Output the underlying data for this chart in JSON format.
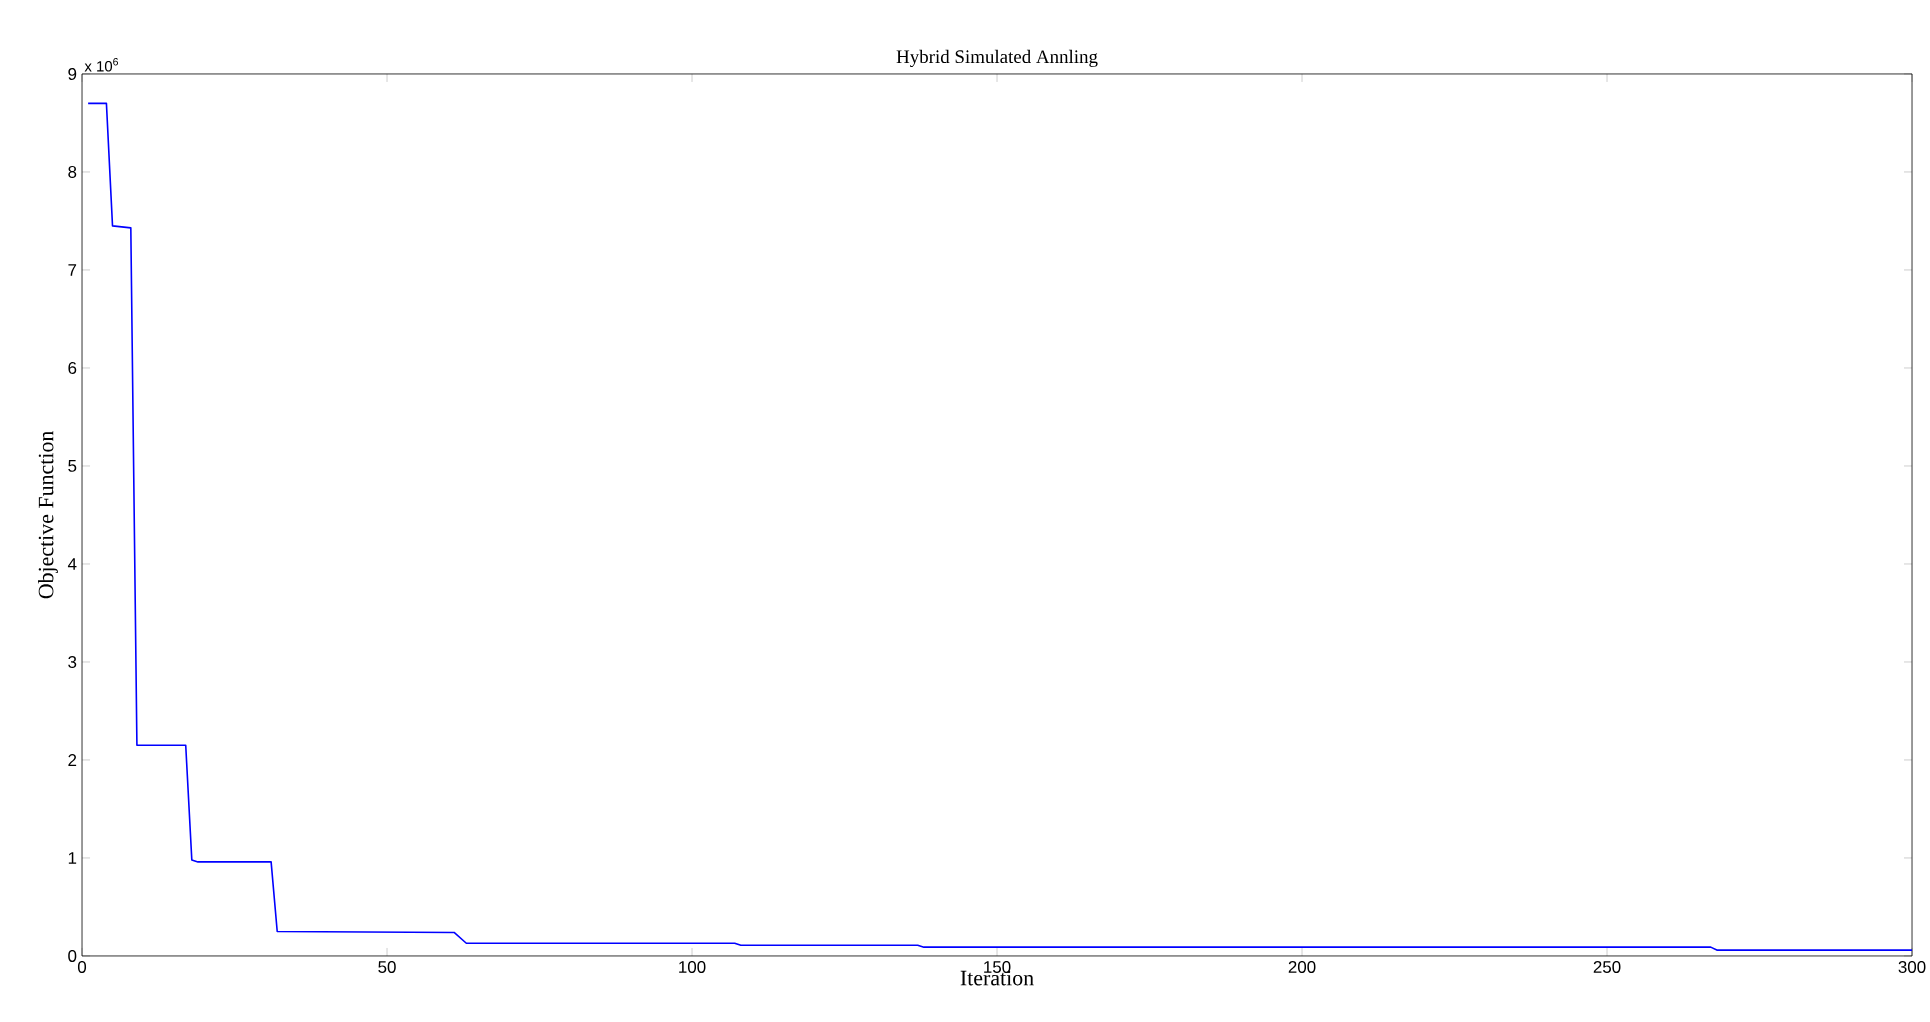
{
  "chart_data": {
    "type": "line",
    "title": "Hybrid Simulated Annling",
    "xlabel": "Iteration",
    "ylabel": "Objective Function",
    "annotations": [
      "x 10$^{6}$"
    ],
    "x": [
      1,
      4,
      5,
      8,
      9,
      17,
      18,
      19,
      31,
      32,
      61,
      63,
      107,
      108,
      137,
      138,
      267,
      268,
      300
    ],
    "values": [
      8.7,
      8.7,
      7.45,
      7.43,
      2.15,
      2.15,
      0.98,
      0.96,
      0.96,
      0.25,
      0.24,
      0.13,
      0.13,
      0.11,
      0.11,
      0.09,
      0.09,
      0.06,
      0.06
    ],
    "color": "#0000ff",
    "xlim": [
      0,
      300
    ],
    "ylim": [
      0,
      9
    ],
    "xticks": [
      0,
      50,
      100,
      150,
      200,
      250,
      300
    ],
    "yticks": [
      0,
      1,
      2,
      3,
      4,
      5,
      6,
      7,
      8,
      9
    ]
  }
}
